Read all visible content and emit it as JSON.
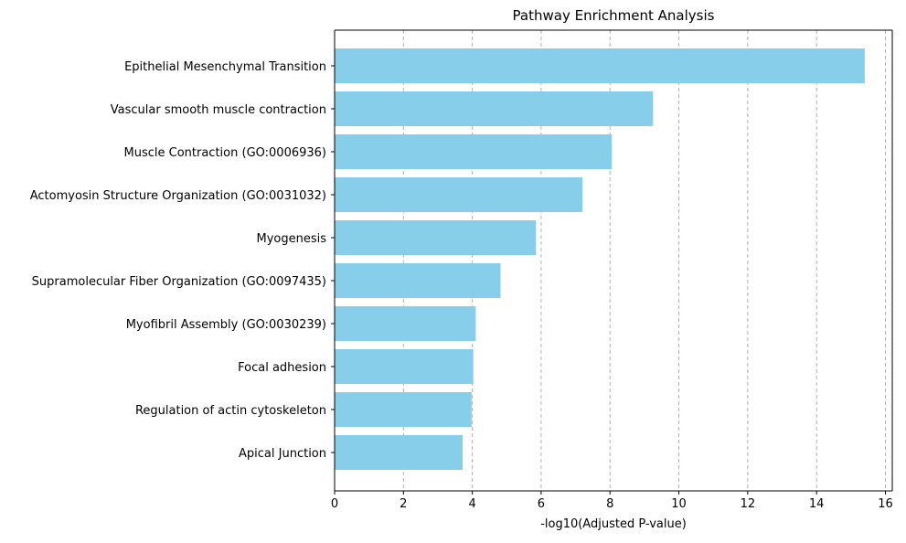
{
  "chart_data": {
    "type": "bar",
    "orientation": "horizontal",
    "title": "Pathway Enrichment Analysis",
    "xlabel": "-log10(Adjusted P-value)",
    "ylabel": "",
    "xlim": [
      0,
      16.2
    ],
    "x_ticks": [
      0,
      2,
      4,
      6,
      8,
      10,
      12,
      14,
      16
    ],
    "grid": "x-dashed",
    "bar_color": "#87CEEB",
    "grid_color": "#b0b0b0",
    "categories": [
      "Epithelial Mesenchymal Transition",
      "Vascular smooth muscle contraction",
      "Muscle Contraction (GO:0006936)",
      "Actomyosin Structure Organization (GO:0031032)",
      "Myogenesis",
      "Supramolecular Fiber Organization (GO:0097435)",
      "Myofibril Assembly (GO:0030239)",
      "Focal adhesion",
      "Regulation of actin cytoskeleton",
      "Apical Junction"
    ],
    "values": [
      15.4,
      9.25,
      8.05,
      7.2,
      5.85,
      4.82,
      4.1,
      4.03,
      3.98,
      3.72
    ]
  }
}
